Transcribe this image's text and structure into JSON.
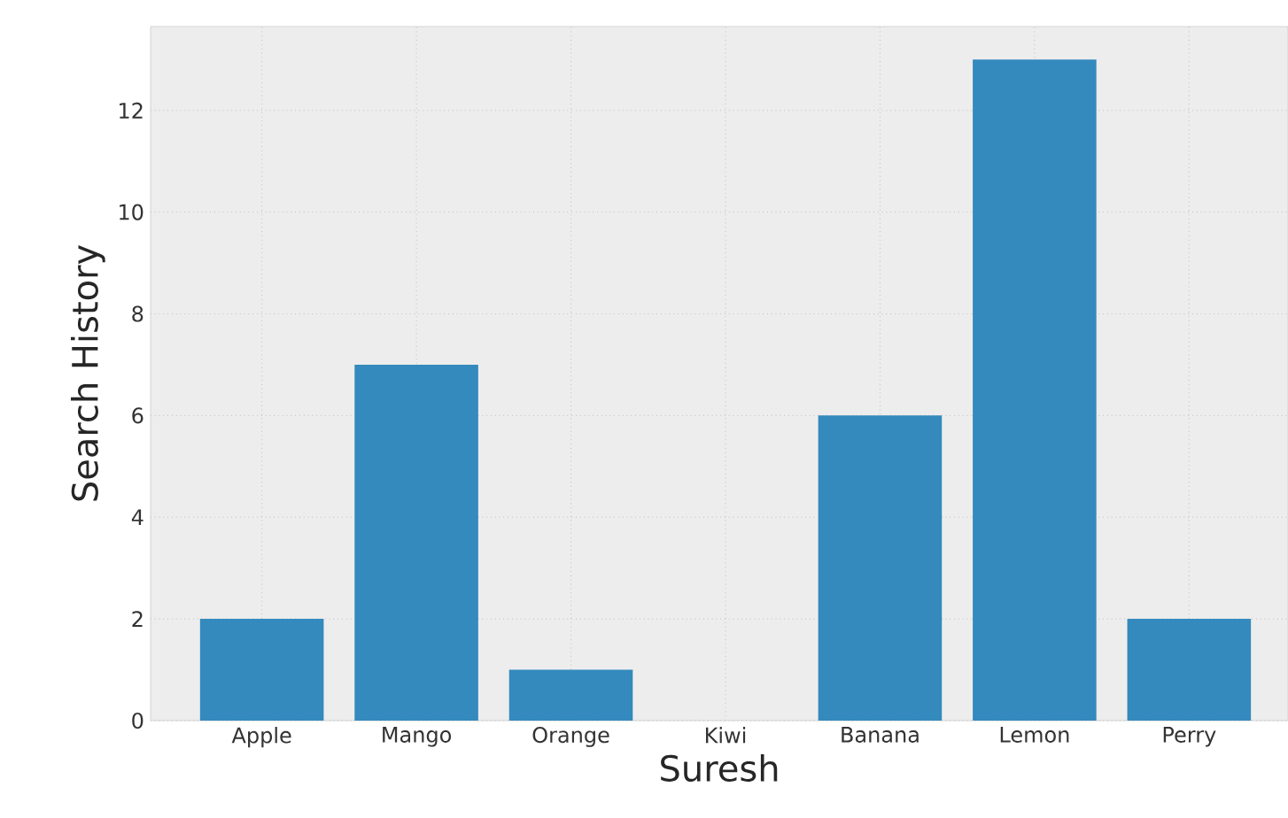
{
  "chart_data": {
    "type": "bar",
    "xlabel": "Suresh",
    "ylabel": "Search History",
    "categories": [
      "Apple",
      "Mango",
      "Orange",
      "Kiwi",
      "Banana",
      "Lemon",
      "Perry"
    ],
    "values": [
      2,
      7,
      1,
      0,
      6,
      13,
      2
    ],
    "color": "#348abd",
    "ylim": [
      0,
      13.65
    ],
    "yticks": [
      0,
      2,
      4,
      6,
      8,
      10,
      12
    ],
    "grid": true
  }
}
